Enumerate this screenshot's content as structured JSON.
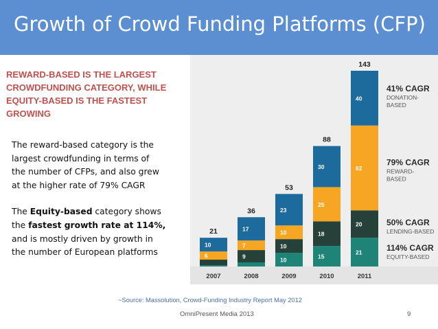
{
  "slide": {
    "title": "Growth of Crowd Funding Platforms (CFP)",
    "headline_lines": [
      "REWARD-BASED IS THE LARGEST",
      "CROWDFUNDING CATEGORY, WHILE",
      "EQUITY-BASED IS THE FASTEST",
      "GROWING"
    ],
    "paragraph1": [
      "The reward-based  category is the",
      "largest crowdfunding in terms of",
      "the number of CFPs, and also grew",
      "at the higher rate of 79% CAGR"
    ],
    "paragraph2": {
      "line1_pre": "The ",
      "line1_bold": "Equity-based",
      "line1_post": " category shows",
      "line2_pre": "the ",
      "line2_bold": "fastest growth rate at 114%,",
      "line3": "and is mostly driven by growth in",
      "line4": "the number of European platforms"
    },
    "source": "~Source: Massolution, Crowd-Funding Industry Report May 2012",
    "footer": "OmniPresent Media 2013",
    "page_number": "9"
  },
  "chart_data": {
    "type": "bar",
    "stacked": true,
    "title": "",
    "xlabel": "",
    "ylabel": "",
    "categories": [
      "2007",
      "2008",
      "2009",
      "2010",
      "2011"
    ],
    "totals": [
      21,
      36,
      53,
      88,
      143
    ],
    "ylim": [
      0,
      143
    ],
    "grid": false,
    "series": [
      {
        "name": "EQUITY-BASED",
        "cagr": "114% CAGR",
        "color": "#1f8478",
        "values": [
          1,
          3,
          10,
          15,
          21
        ]
      },
      {
        "name": "LENDING-BASED",
        "cagr": "50% CAGR",
        "color": "#26413a",
        "values": [
          4,
          9,
          10,
          18,
          20
        ]
      },
      {
        "name": "REWARD-BASED",
        "cagr": "79% CAGR",
        "color": "#f6a623",
        "values": [
          6,
          7,
          10,
          25,
          62
        ]
      },
      {
        "name": "DONATION-BASED",
        "cagr": "41% CAGR",
        "color": "#1c6b9c",
        "values": [
          10,
          17,
          23,
          30,
          40
        ]
      }
    ],
    "legend_position": "right",
    "legend_label_lines": {
      "DONATION-BASED": [
        "DONATION-",
        "BASED"
      ],
      "REWARD-BASED": [
        "REWARD-",
        "BASED"
      ],
      "LENDING-BASED": [
        "LENDING-BASED"
      ],
      "EQUITY-BASED": [
        "EQUITY-BASED"
      ]
    }
  }
}
